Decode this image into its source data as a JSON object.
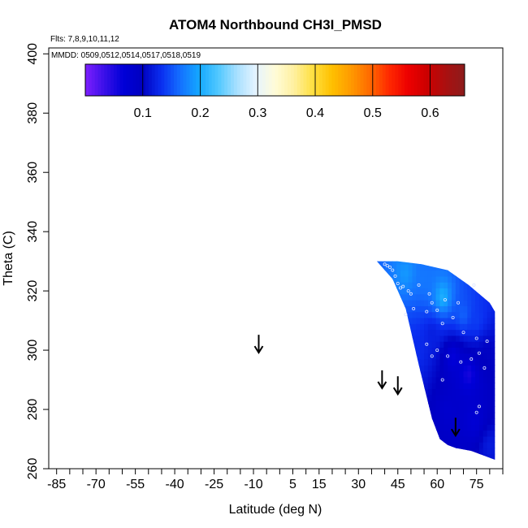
{
  "chart_data": {
    "type": "heatmap",
    "title": "ATOM4 Northbound CH3I_PMSD",
    "subtitle": "Flts: 7,8,9,10,11,12",
    "annotation": "MMDD: 0509,0512,0514,0517,0518,0519",
    "xlabel": "Latitude (deg N)",
    "ylabel": "Theta (C)",
    "xlim": [
      -88,
      85
    ],
    "ylim": [
      260,
      402
    ],
    "x_ticks": [
      -85,
      -70,
      -55,
      -40,
      -25,
      -10,
      5,
      15,
      30,
      45,
      60,
      75
    ],
    "x_minor_step": 5,
    "y_ticks": [
      260,
      280,
      300,
      320,
      340,
      360,
      380,
      400
    ],
    "colorbar": {
      "range": [
        0,
        0.66
      ],
      "ticks": [
        0.1,
        0.2,
        0.3,
        0.4,
        0.5,
        0.6
      ],
      "tick_labels": [
        "0.1",
        "0.2",
        "0.3",
        "0.4",
        "0.5",
        "0.6"
      ],
      "colors": [
        "#7e1fff",
        "#3a10e8",
        "#0000d8",
        "#0000c0",
        "#0a2ef0",
        "#1470ff",
        "#14a8ff",
        "#50c8ff",
        "#a8e0ff",
        "#e6f4ff",
        "#fffcd8",
        "#fff0a0",
        "#ffe040",
        "#ffc000",
        "#ff9a00",
        "#ff6a00",
        "#ff2a00",
        "#ee0000",
        "#cc0000",
        "#aa1010",
        "#8c1c1c"
      ]
    },
    "arrows": [
      {
        "lat": -8,
        "theta": 303
      },
      {
        "lat": 39,
        "theta": 291
      },
      {
        "lat": 45,
        "theta": 289
      },
      {
        "lat": 67,
        "theta": 275
      }
    ],
    "region": {
      "polygon": [
        [
          37,
          330
        ],
        [
          45,
          330
        ],
        [
          54,
          329
        ],
        [
          64,
          327
        ],
        [
          72,
          322
        ],
        [
          80,
          316
        ],
        [
          82,
          313
        ],
        [
          82,
          263
        ],
        [
          73,
          266
        ],
        [
          67,
          267
        ],
        [
          64,
          268
        ],
        [
          61,
          270
        ],
        [
          58,
          277
        ],
        [
          53,
          295
        ],
        [
          48,
          314
        ],
        [
          43,
          324
        ]
      ],
      "background_value": 0.09
    },
    "field_samples": [
      {
        "lat": 48,
        "theta": 326,
        "value": 0.19
      },
      {
        "lat": 55,
        "theta": 324,
        "value": 0.17
      },
      {
        "lat": 62,
        "theta": 318,
        "value": 0.21
      },
      {
        "lat": 70,
        "theta": 312,
        "value": 0.16
      },
      {
        "lat": 75,
        "theta": 310,
        "value": 0.14
      },
      {
        "lat": 58,
        "theta": 306,
        "value": 0.12
      },
      {
        "lat": 66,
        "theta": 298,
        "value": 0.06
      },
      {
        "lat": 72,
        "theta": 292,
        "value": 0.05
      },
      {
        "lat": 64,
        "theta": 280,
        "value": 0.08
      },
      {
        "lat": 74,
        "theta": 276,
        "value": 0.07
      },
      {
        "lat": 79,
        "theta": 300,
        "value": 0.1
      },
      {
        "lat": 80,
        "theta": 268,
        "value": 0.12
      },
      {
        "lat": 52,
        "theta": 300,
        "value": 0.13
      }
    ],
    "points": [
      [
        40,
        329
      ],
      [
        41,
        328.5
      ],
      [
        42,
        328
      ],
      [
        43,
        327
      ],
      [
        44,
        325
      ],
      [
        45,
        322.5
      ],
      [
        46,
        321
      ],
      [
        47,
        321.5
      ],
      [
        49,
        320
      ],
      [
        50,
        319
      ],
      [
        53,
        322
      ],
      [
        57,
        319
      ],
      [
        58,
        316
      ],
      [
        60,
        313.5
      ],
      [
        48,
        312
      ],
      [
        51,
        314
      ],
      [
        56,
        313
      ],
      [
        63,
        317
      ],
      [
        68,
        316
      ],
      [
        74,
        322
      ],
      [
        62,
        309
      ],
      [
        66,
        311
      ],
      [
        70,
        306
      ],
      [
        75,
        304
      ],
      [
        79,
        303
      ],
      [
        56,
        302
      ],
      [
        60,
        300
      ],
      [
        64,
        298
      ],
      [
        69,
        296
      ],
      [
        73,
        297
      ],
      [
        76,
        299
      ],
      [
        78,
        294
      ],
      [
        58,
        298
      ],
      [
        62,
        290
      ],
      [
        76,
        281
      ],
      [
        75,
        279
      ]
    ]
  }
}
